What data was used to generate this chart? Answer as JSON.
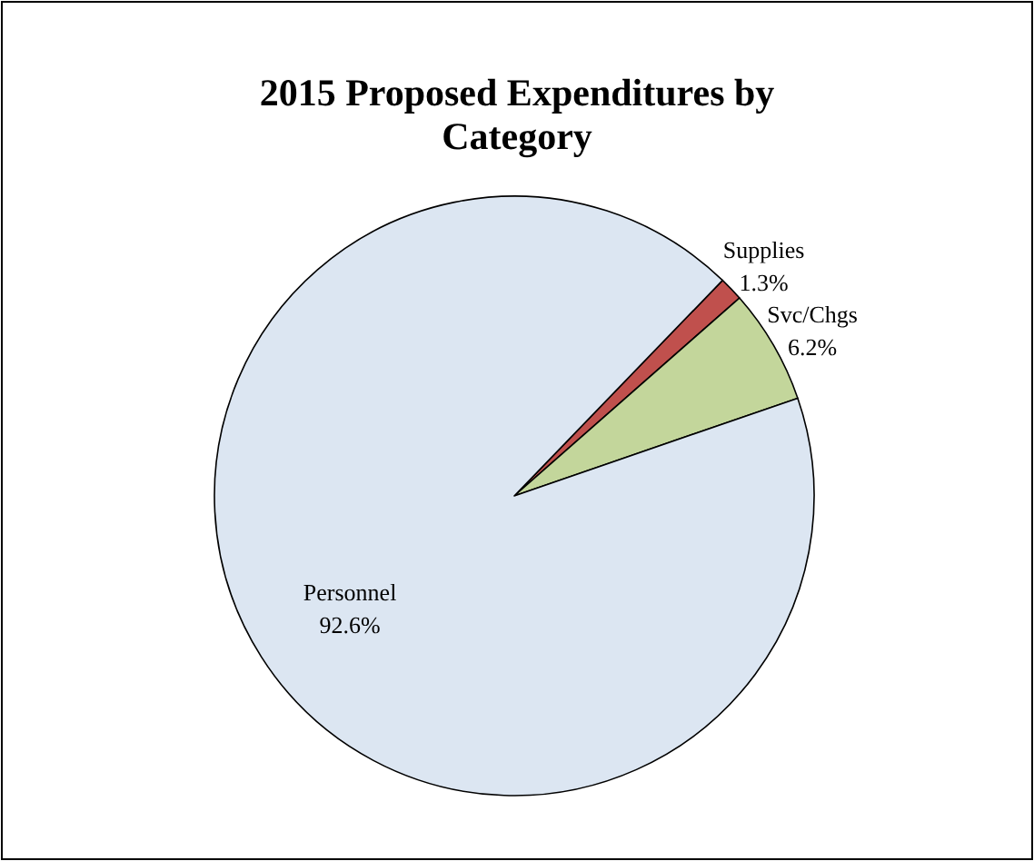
{
  "chart_data": {
    "type": "pie",
    "title": "2015 Proposed Expenditures by Category",
    "categories": [
      "Supplies",
      "Svc/Chgs",
      "Personnel"
    ],
    "values": [
      1.3,
      6.2,
      92.6
    ],
    "colors": [
      "#c0504d",
      "#c3d69b",
      "#dce6f2"
    ],
    "value_labels": [
      "1.3%",
      "6.2%",
      "92.6%"
    ]
  }
}
